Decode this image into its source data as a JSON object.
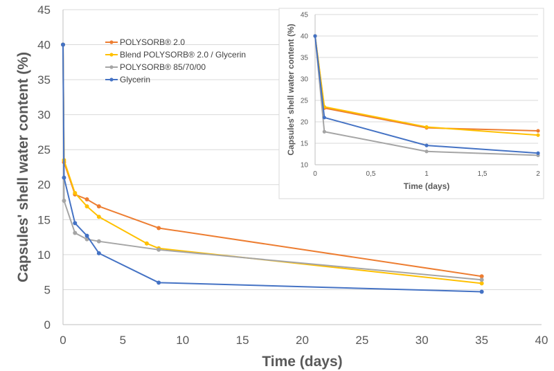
{
  "chart_data": [
    {
      "type": "line",
      "xlabel": "Time (days)",
      "ylabel": "Capsules' shell water content (%)",
      "xlim": [
        0,
        40
      ],
      "ylim": [
        0,
        45
      ],
      "xticks": [
        0,
        5,
        10,
        15,
        20,
        25,
        30,
        35,
        40
      ],
      "yticks": [
        0,
        5,
        10,
        15,
        20,
        25,
        30,
        35,
        40,
        45
      ],
      "grid": "horizontal",
      "legend": "top-left",
      "series": [
        {
          "name": "POLYSORB® 2.0",
          "color": "#ED7D31",
          "x": [
            0,
            0.083,
            1,
            2,
            3,
            8,
            35
          ],
          "y": [
            40,
            23.2,
            18.6,
            17.9,
            16.9,
            13.8,
            6.9
          ]
        },
        {
          "name": "Blend POLYSORB® 2.0 / Glycerin",
          "color": "#FFC000",
          "x": [
            0,
            0.083,
            1,
            2,
            3,
            7,
            8,
            35
          ],
          "y": [
            40,
            23.5,
            18.8,
            16.9,
            15.4,
            11.6,
            10.9,
            5.9
          ]
        },
        {
          "name": "POLYSORB® 85/70/00",
          "color": "#A5A5A5",
          "x": [
            0,
            0.083,
            1,
            2,
            3,
            8,
            35
          ],
          "y": [
            40,
            17.7,
            13.1,
            12.2,
            11.9,
            10.7,
            6.4
          ]
        },
        {
          "name": "Glycerin",
          "color": "#4472C4",
          "x": [
            0,
            0.083,
            1,
            2,
            3,
            8,
            35
          ],
          "y": [
            40,
            21.0,
            14.5,
            12.7,
            10.2,
            6.0,
            4.7
          ]
        }
      ]
    },
    {
      "type": "line",
      "xlabel": "Time (days)",
      "ylabel": "Capsules' shell water content (%)",
      "xlim": [
        0,
        2
      ],
      "ylim": [
        10,
        45
      ],
      "xticks": [
        "0",
        "0,5",
        "1",
        "1,5",
        "2"
      ],
      "yticks": [
        10,
        15,
        20,
        25,
        30,
        35,
        40,
        45
      ],
      "grid": "horizontal",
      "series": [
        {
          "color": "#ED7D31",
          "x": [
            0,
            0.083,
            1,
            2
          ],
          "y": [
            40,
            23.2,
            18.6,
            17.9
          ]
        },
        {
          "color": "#FFC000",
          "x": [
            0,
            0.083,
            1,
            2
          ],
          "y": [
            40,
            23.5,
            18.8,
            16.9
          ]
        },
        {
          "color": "#A5A5A5",
          "x": [
            0,
            0.083,
            1,
            2
          ],
          "y": [
            40,
            17.7,
            13.1,
            12.2
          ]
        },
        {
          "color": "#4472C4",
          "x": [
            0,
            0.083,
            1,
            2
          ],
          "y": [
            40,
            21.0,
            14.5,
            12.7
          ]
        }
      ]
    }
  ]
}
